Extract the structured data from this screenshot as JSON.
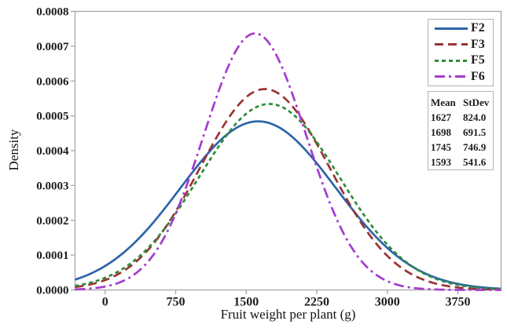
{
  "chart_data": {
    "type": "line",
    "subtype": "normal-density-curves",
    "title": "",
    "xlabel": "Fruit weight per plant (g)",
    "ylabel": "Density",
    "xlim": [
      -320,
      4210
    ],
    "ylim": [
      0,
      0.0008
    ],
    "x_ticks": [
      0,
      750,
      1500,
      2250,
      3000,
      3750
    ],
    "y_tick_labels": [
      "0.0000",
      "0.0001",
      "0.0002",
      "0.0003",
      "0.0004",
      "0.0005",
      "0.0006",
      "0.0007",
      "0.0008"
    ],
    "grid": false,
    "legend_position": "top-right",
    "series": [
      {
        "name": "F2",
        "mean": 1627,
        "stdev": 824.0,
        "peak_density": 0.000484,
        "color": "#2d64a8",
        "line_style": "solid"
      },
      {
        "name": "F3",
        "mean": 1698,
        "stdev": 691.5,
        "peak_density": 0.000577,
        "color": "#9a3335",
        "line_style": "dash"
      },
      {
        "name": "F5",
        "mean": 1745,
        "stdev": 746.9,
        "peak_density": 0.000534,
        "color": "#2e8b3c",
        "line_style": "shortdash"
      },
      {
        "name": "F6",
        "mean": 1593,
        "stdev": 541.6,
        "peak_density": 0.000737,
        "color": "#a53bce",
        "line_style": "dashdot"
      }
    ],
    "stats_table": {
      "headers": [
        "Mean",
        "StDev"
      ],
      "rows": [
        [
          "1627",
          "824.0"
        ],
        [
          "1698",
          "691.5"
        ],
        [
          "1745",
          "746.9"
        ],
        [
          "1593",
          "541.6"
        ]
      ]
    }
  },
  "colors": {
    "axis": "#a6a6a6",
    "tick_text": "#1c1c1c",
    "background": "#ffffff"
  }
}
